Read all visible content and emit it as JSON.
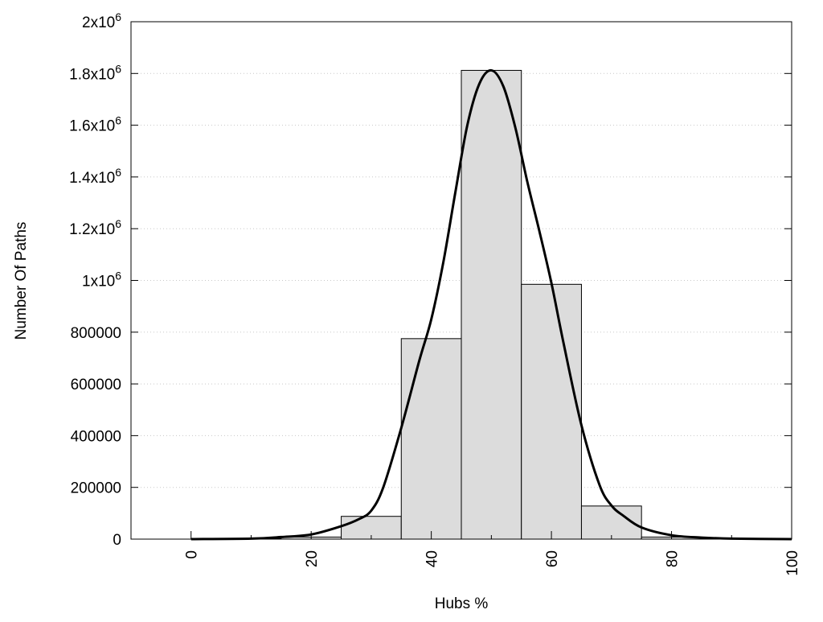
{
  "chart_data": {
    "type": "bar",
    "title": "",
    "xlabel": "Hubs %",
    "ylabel": "Number Of Paths",
    "xlim": [
      -10,
      100
    ],
    "ylim": [
      0,
      2000000
    ],
    "grid": {
      "y": true,
      "x": false,
      "style": "dotted"
    },
    "x_ticks": [
      {
        "value": 0,
        "label": "0"
      },
      {
        "value": 20,
        "label": "20"
      },
      {
        "value": 40,
        "label": "40"
      },
      {
        "value": 60,
        "label": "60"
      },
      {
        "value": 80,
        "label": "80"
      },
      {
        "value": 100,
        "label": "100"
      }
    ],
    "x_minor_ticks": [
      10,
      30,
      50,
      70,
      90
    ],
    "y_ticks": [
      {
        "value": 0,
        "label": "0",
        "sup": ""
      },
      {
        "value": 200000,
        "label": "200000",
        "sup": ""
      },
      {
        "value": 400000,
        "label": "400000",
        "sup": ""
      },
      {
        "value": 600000,
        "label": "600000",
        "sup": ""
      },
      {
        "value": 800000,
        "label": "800000",
        "sup": ""
      },
      {
        "value": 1000000,
        "label": "1x10",
        "sup": "6"
      },
      {
        "value": 1200000,
        "label": "1.2x10",
        "sup": "6"
      },
      {
        "value": 1400000,
        "label": "1.4x10",
        "sup": "6"
      },
      {
        "value": 1600000,
        "label": "1.6x10",
        "sup": "6"
      },
      {
        "value": 1800000,
        "label": "1.8x10",
        "sup": "6"
      },
      {
        "value": 2000000,
        "label": "2x10",
        "sup": "6"
      }
    ],
    "series": [
      {
        "kind": "histogram",
        "color": "#dcdcdc",
        "edge_color": "#000000",
        "bin_width": 10,
        "bins": [
          {
            "x": 0,
            "value": 0
          },
          {
            "x": 10,
            "value": 2000
          },
          {
            "x": 20,
            "value": 8000
          },
          {
            "x": 30,
            "value": 88000
          },
          {
            "x": 40,
            "value": 775000
          },
          {
            "x": 50,
            "value": 1812000
          },
          {
            "x": 60,
            "value": 985000
          },
          {
            "x": 70,
            "value": 128000
          },
          {
            "x": 80,
            "value": 8000
          },
          {
            "x": 90,
            "value": 500
          }
        ]
      },
      {
        "kind": "line",
        "color": "#000000",
        "x": [
          0,
          10,
          15,
          20,
          25,
          28,
          30,
          32,
          35,
          38,
          40,
          42,
          44,
          46,
          48,
          50,
          52,
          54,
          56,
          58,
          60,
          62,
          65,
          68,
          70,
          72,
          75,
          80,
          85,
          90,
          100
        ],
        "y": [
          0,
          2000,
          8000,
          18000,
          50000,
          78000,
          110000,
          200000,
          430000,
          690000,
          850000,
          1070000,
          1340000,
          1600000,
          1760000,
          1812000,
          1750000,
          1590000,
          1380000,
          1190000,
          990000,
          760000,
          440000,
          210000,
          130000,
          90000,
          45000,
          15000,
          6000,
          2000,
          0
        ]
      }
    ]
  }
}
